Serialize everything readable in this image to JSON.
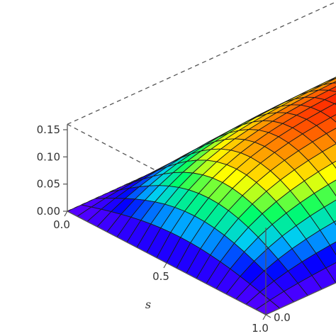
{
  "chart_data": {
    "type": "surface",
    "function": "z = 0.16 * sin(pi*s) * (1 - exp(-5*t))",
    "s_range": [
      0,
      1
    ],
    "t_range": [
      0,
      1
    ],
    "z_range": [
      0,
      0.16
    ],
    "z_ticks": [
      "0.00",
      "0.05",
      "0.10",
      "0.15"
    ],
    "s_ticks": [
      "0.0",
      "0.5",
      "1.0"
    ],
    "t_ticks": [
      "0.0"
    ],
    "s_label": "s",
    "mesh": {
      "s_divisions": 20,
      "t_divisions": 20
    },
    "colormap": [
      "#5b00ff",
      "#0000ff",
      "#00c8ff",
      "#00ff66",
      "#ffff00",
      "#ff8800",
      "#ff0000"
    ],
    "box": "dashed"
  }
}
